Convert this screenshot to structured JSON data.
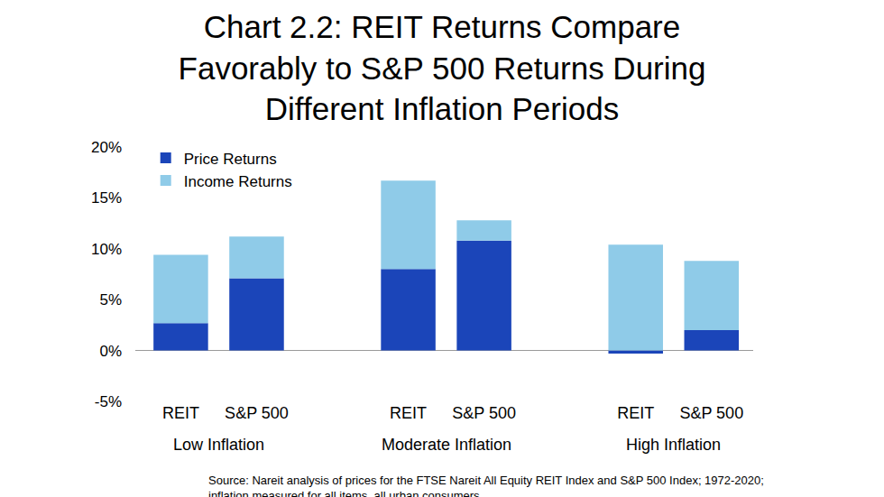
{
  "chart_data": {
    "type": "bar",
    "title": [
      "Chart 2.2: REIT Returns Compare",
      "Favorably to S&P 500 Returns During",
      "Different Inflation Periods"
    ],
    "categories": [
      "REIT",
      "S&P 500",
      "REIT",
      "S&P 500",
      "REIT",
      "S&P 500"
    ],
    "category_groups": [
      "Low Inflation",
      "Low Inflation",
      "Moderate Inflation",
      "Moderate Inflation",
      "High Inflation",
      "High Inflation"
    ],
    "series": [
      {
        "name": "Price Returns",
        "color": "#1b45b9",
        "values": [
          2.7,
          7.1,
          8.0,
          10.8,
          -0.3,
          2.0
        ]
      },
      {
        "name": "Income Returns",
        "color": "#8fcbe8",
        "values": [
          6.7,
          4.1,
          8.7,
          2.0,
          10.4,
          6.8
        ]
      }
    ],
    "stacked": true,
    "ylim": [
      -5,
      20
    ],
    "yticks": [
      {
        "value": -5,
        "label": "-5%"
      },
      {
        "value": 0,
        "label": "0%"
      },
      {
        "value": 5,
        "label": "5%"
      },
      {
        "value": 10,
        "label": "10%"
      },
      {
        "value": 15,
        "label": "15%"
      },
      {
        "value": 20,
        "label": "20%"
      }
    ],
    "grid": false,
    "legend": "upper left",
    "data_labels": false,
    "source": [
      "Source: Nareit analysis of prices for the FTSE Nareit All Equity REIT Index and S&P 500 Index; 1972-2020;",
      "inflation measured for all items, all urban consumers."
    ]
  }
}
